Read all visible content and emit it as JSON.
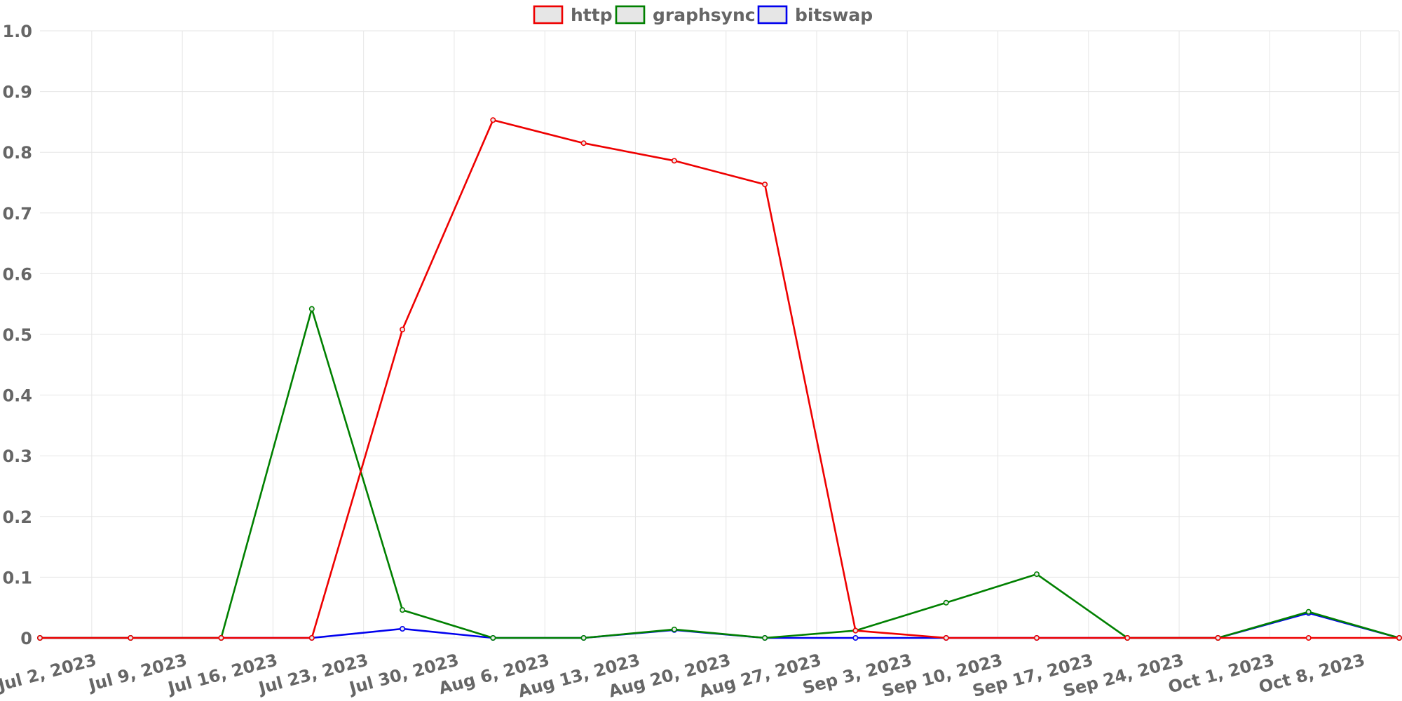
{
  "chart_data": {
    "type": "line",
    "x": [
      "Jul 2, 2023",
      "Jul 9, 2023",
      "Jul 16, 2023",
      "Jul 23, 2023",
      "Jul 30, 2023",
      "Aug 6, 2023",
      "Aug 13, 2023",
      "Aug 20, 2023",
      "Aug 27, 2023",
      "Sep 3, 2023",
      "Sep 10, 2023",
      "Sep 17, 2023",
      "Sep 24, 2023",
      "Oct 1, 2023",
      "Oct 8, 2023"
    ],
    "ylim": [
      0,
      1
    ],
    "yticks": [
      "0",
      "0.1",
      "0.2",
      "0.3",
      "0.4",
      "0.5",
      "0.6",
      "0.7",
      "0.8",
      "0.9",
      "1.0"
    ],
    "grid": true,
    "legend_position": "top-center",
    "series": [
      {
        "name": "http",
        "color": "#ee0000",
        "points": [
          [
            "Jun 28, 2023",
            0
          ],
          [
            "Jul 5, 2023",
            0
          ],
          [
            "Jul 12, 2023",
            0
          ],
          [
            "Jul 19, 2023",
            0
          ],
          [
            "Jul 26, 2023",
            0.508
          ],
          [
            "Aug 2, 2023",
            0.853
          ],
          [
            "Aug 9, 2023",
            0.815
          ],
          [
            "Aug 16, 2023",
            0.786
          ],
          [
            "Aug 23, 2023",
            0.747
          ],
          [
            "Aug 30, 2023",
            0.012
          ],
          [
            "Sep 6, 2023",
            0
          ],
          [
            "Sep 13, 2023",
            0
          ],
          [
            "Sep 20, 2023",
            0
          ],
          [
            "Sep 27, 2023",
            0
          ],
          [
            "Oct 4, 2023",
            0
          ],
          [
            "Oct 11, 2023",
            0
          ]
        ]
      },
      {
        "name": "graphsync",
        "color": "#008000",
        "points": [
          [
            "Jun 28, 2023",
            0
          ],
          [
            "Jul 5, 2023",
            0
          ],
          [
            "Jul 12, 2023",
            0
          ],
          [
            "Jul 19, 2023",
            0.542
          ],
          [
            "Jul 26, 2023",
            0.046
          ],
          [
            "Aug 2, 2023",
            0
          ],
          [
            "Aug 9, 2023",
            0
          ],
          [
            "Aug 16, 2023",
            0.014
          ],
          [
            "Aug 23, 2023",
            0
          ],
          [
            "Aug 30, 2023",
            0.012
          ],
          [
            "Sep 6, 2023",
            0.058
          ],
          [
            "Sep 13, 2023",
            0.105
          ],
          [
            "Sep 20, 2023",
            0
          ],
          [
            "Sep 27, 2023",
            0
          ],
          [
            "Oct 4, 2023",
            0.043
          ],
          [
            "Oct 11, 2023",
            0
          ]
        ]
      },
      {
        "name": "bitswap",
        "color": "#0000ee",
        "points": [
          [
            "Jun 28, 2023",
            0
          ],
          [
            "Jul 5, 2023",
            0
          ],
          [
            "Jul 12, 2023",
            0
          ],
          [
            "Jul 19, 2023",
            0
          ],
          [
            "Jul 26, 2023",
            0.015
          ],
          [
            "Aug 2, 2023",
            0
          ],
          [
            "Aug 9, 2023",
            0
          ],
          [
            "Aug 16, 2023",
            0.013
          ],
          [
            "Aug 23, 2023",
            0
          ],
          [
            "Aug 30, 2023",
            0
          ],
          [
            "Sep 6, 2023",
            0
          ],
          [
            "Sep 13, 2023",
            0
          ],
          [
            "Sep 20, 2023",
            0
          ],
          [
            "Sep 27, 2023",
            0
          ],
          [
            "Oct 4, 2023",
            0.041
          ],
          [
            "Oct 11, 2023",
            0
          ]
        ]
      }
    ]
  }
}
